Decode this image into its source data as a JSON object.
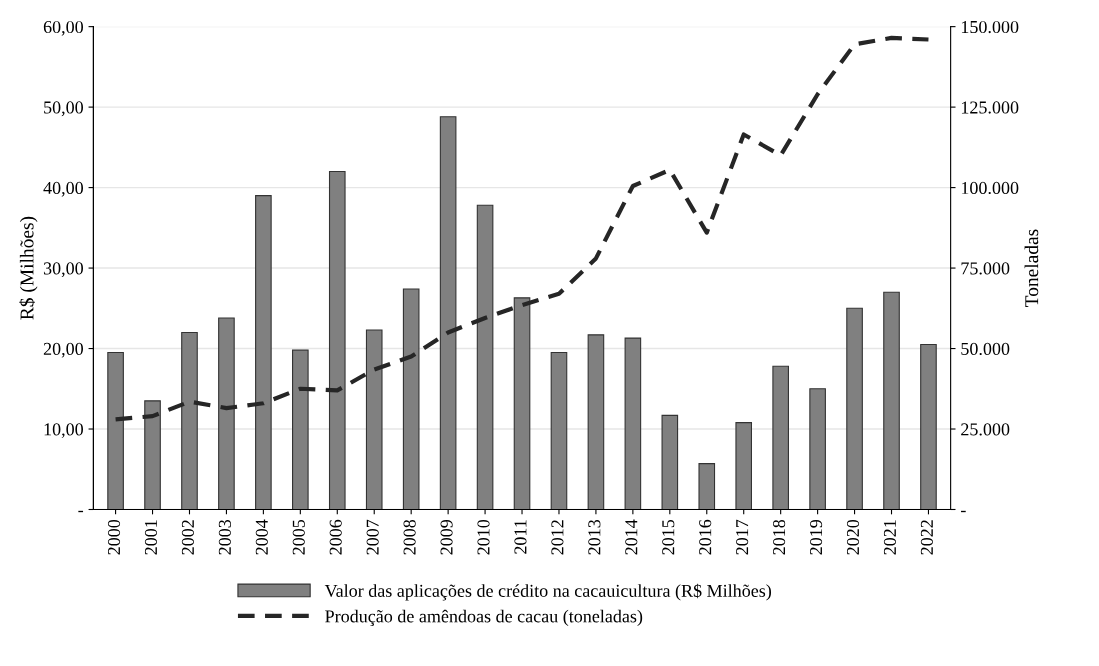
{
  "chart_data": {
    "type": "bar",
    "ylabel": "R$ (Milhões)",
    "y2label": "Toneladas",
    "categories": [
      "2000",
      "2001",
      "2002",
      "2003",
      "2004",
      "2005",
      "2006",
      "2007",
      "2008",
      "2009",
      "2010",
      "2011",
      "2012",
      "2013",
      "2014",
      "2015",
      "2016",
      "2017",
      "2018",
      "2019",
      "2020",
      "2021",
      "2022"
    ],
    "series": [
      {
        "name": "Valor das aplicações de crédito na cacauicultura (R$ Milhões)",
        "color": "#808080",
        "values": [
          19.5,
          13.5,
          22.0,
          23.8,
          39.0,
          19.8,
          42.0,
          22.3,
          27.4,
          48.8,
          37.8,
          26.3,
          19.5,
          21.7,
          21.3,
          11.7,
          5.7,
          10.8,
          17.8,
          15.0,
          25.0,
          27.0,
          20.5
        ]
      },
      {
        "name": "Produção de amêndoas de cacau (toneladas)",
        "type": "line",
        "axis": "y2",
        "color": "#262626",
        "line_style": "dashed",
        "values": [
          28000,
          29000,
          33500,
          31500,
          33000,
          37500,
          37000,
          43500,
          47500,
          55000,
          59500,
          63500,
          67000,
          78000,
          100500,
          105500,
          86000,
          116500,
          110000,
          129000,
          144500,
          146500,
          146000
        ]
      }
    ],
    "ylim": [
      0,
      60
    ],
    "yticks": [
      {
        "value": 0,
        "label": "-"
      },
      {
        "value": 10,
        "label": "10,00"
      },
      {
        "value": 20,
        "label": "20,00"
      },
      {
        "value": 30,
        "label": "30,00"
      },
      {
        "value": 40,
        "label": "40,00"
      },
      {
        "value": 50,
        "label": "50,00"
      },
      {
        "value": 60,
        "label": "60,00"
      }
    ],
    "y2lim": [
      0,
      150000
    ],
    "y2ticks": [
      {
        "value": 0,
        "label": "-"
      },
      {
        "value": 25000,
        "label": "25.000"
      },
      {
        "value": 50000,
        "label": "50.000"
      },
      {
        "value": 75000,
        "label": "75.000"
      },
      {
        "value": 100000,
        "label": "100.000"
      },
      {
        "value": 125000,
        "label": "125.000"
      },
      {
        "value": 150000,
        "label": "150.000"
      }
    ],
    "grid": "y",
    "legend": "bottom"
  }
}
